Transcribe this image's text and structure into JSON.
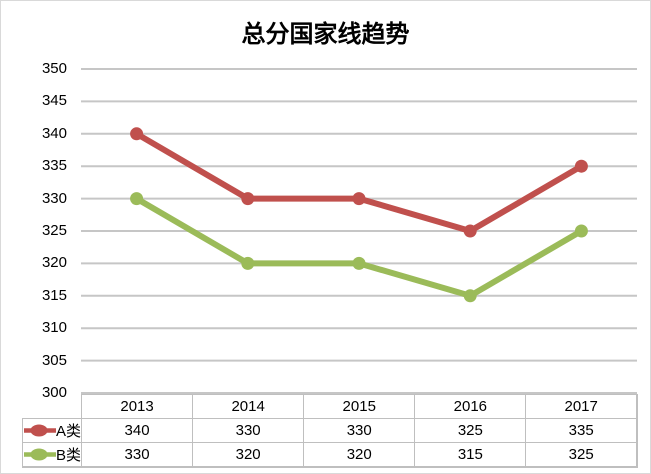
{
  "chart_data": {
    "type": "line",
    "title": "总分国家线趋势",
    "categories": [
      "2013",
      "2014",
      "2015",
      "2016",
      "2017"
    ],
    "series": [
      {
        "name": "A类",
        "color": "#c0504d",
        "values": [
          340,
          330,
          330,
          325,
          335
        ]
      },
      {
        "name": "B类",
        "color": "#9bbb59",
        "values": [
          330,
          320,
          320,
          315,
          325
        ]
      }
    ],
    "ylim": [
      300,
      350
    ],
    "ytick_step": 5,
    "yticks": [
      "350",
      "345",
      "340",
      "335",
      "330",
      "325",
      "320",
      "315",
      "310",
      "305",
      "300"
    ],
    "grid": true,
    "gridline_color": "#c6c6c6",
    "table_border_color": "#bfbfbf",
    "legend_position": "data-table-left",
    "data_table_shown": true,
    "marker": "circle"
  }
}
